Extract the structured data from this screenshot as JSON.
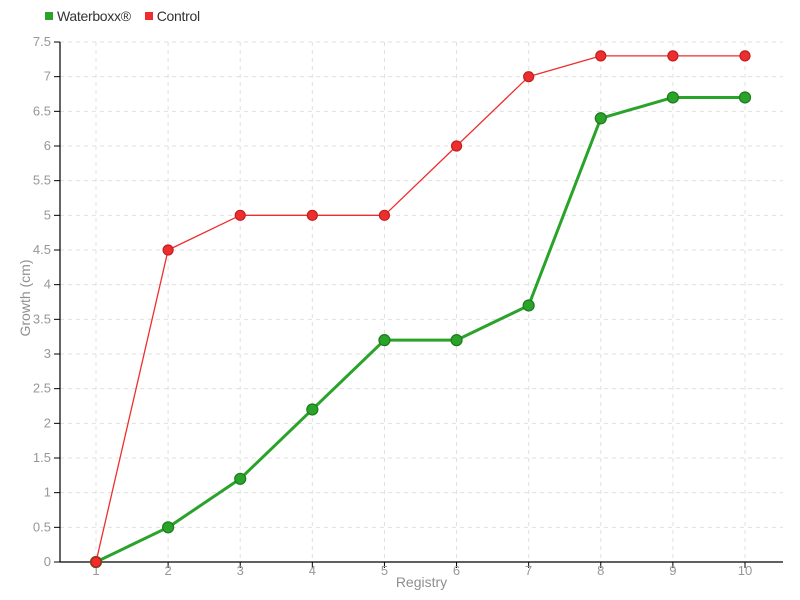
{
  "chart_data": {
    "type": "line",
    "title": "",
    "xlabel": "Registry",
    "ylabel": "Growth (cm)",
    "x": [
      1,
      2,
      3,
      4,
      5,
      6,
      7,
      8,
      9,
      10
    ],
    "yticks": [
      0,
      0.5,
      1,
      1.5,
      2,
      2.5,
      3,
      3.5,
      4,
      4.5,
      5,
      5.5,
      6,
      6.5,
      7,
      7.5
    ],
    "ylim": [
      0,
      7.5
    ],
    "xlim": [
      1,
      10
    ],
    "grid": "dashed",
    "legend_position": "top-left",
    "background": "#ffffff",
    "colors": {
      "axis": "#000000",
      "grid": "#e0e0e0",
      "tick_label": "#979797",
      "axis_title": "#8f8f8f",
      "legend_text": "#333333"
    },
    "series": [
      {
        "name": "Waterboxx®",
        "key": "waterboxx",
        "color": "#2aa32a",
        "marker_stroke": "#1d7a1d",
        "line_width": 3,
        "marker_radius": 5.5,
        "values": [
          0,
          0.5,
          1.2,
          2.2,
          3.2,
          3.2,
          3.7,
          6.4,
          6.7,
          6.7
        ]
      },
      {
        "name": "Control",
        "key": "control",
        "color": "#ee2e2e",
        "marker_stroke": "#c01f1f",
        "line_width": 1.3,
        "marker_radius": 5,
        "values": [
          0,
          4.5,
          5,
          5,
          5,
          6,
          7,
          7.3,
          7.3,
          7.3
        ]
      }
    ]
  }
}
